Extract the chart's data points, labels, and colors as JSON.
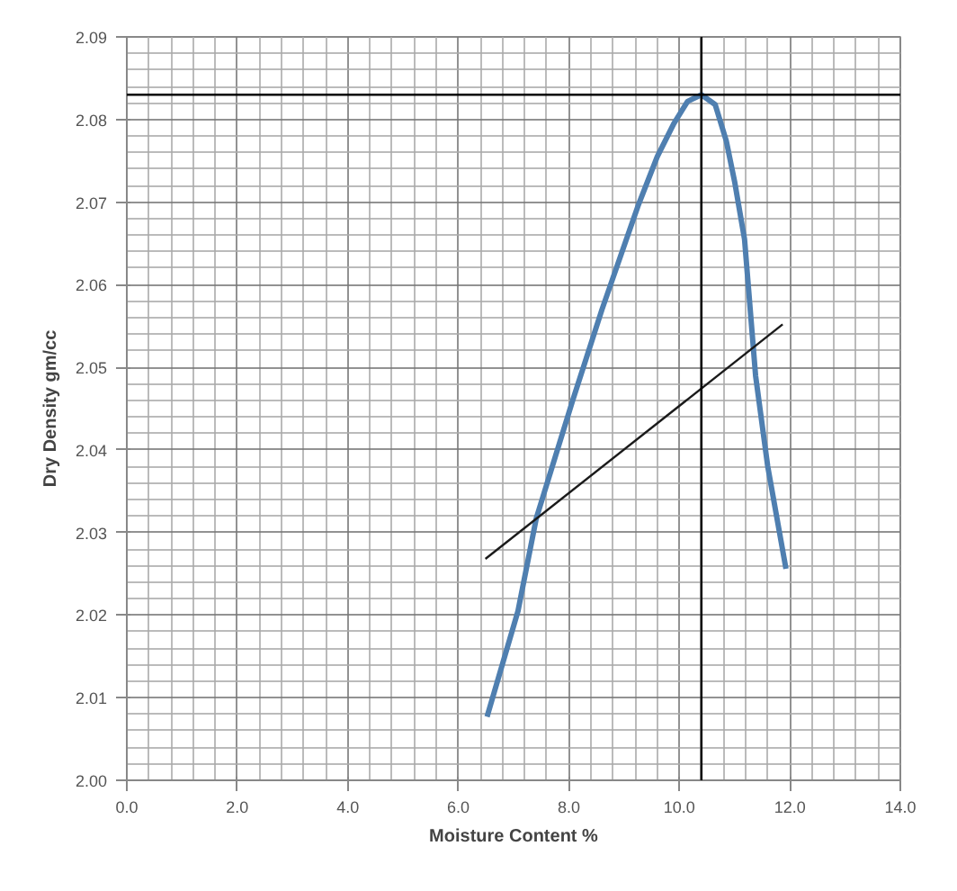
{
  "chart_data": {
    "type": "line",
    "xlabel": "Moisture Content %",
    "ylabel": "Dry Density gm/cc",
    "xlim": [
      0,
      14
    ],
    "ylim": [
      2.0,
      2.09
    ],
    "xticks": [
      {
        "value": 0,
        "label": "0.0"
      },
      {
        "value": 2,
        "label": "2.0"
      },
      {
        "value": 4,
        "label": "4.0"
      },
      {
        "value": 6,
        "label": "6.0"
      },
      {
        "value": 8,
        "label": "8.0"
      },
      {
        "value": 10,
        "label": "10.0"
      },
      {
        "value": 12,
        "label": "12.0"
      },
      {
        "value": 14,
        "label": "14.0"
      }
    ],
    "yticks": [
      {
        "value": 2.0,
        "label": "2.00"
      },
      {
        "value": 2.01,
        "label": "2.01"
      },
      {
        "value": 2.02,
        "label": "2.02"
      },
      {
        "value": 2.03,
        "label": "2.03"
      },
      {
        "value": 2.04,
        "label": "2.04"
      },
      {
        "value": 2.05,
        "label": "2.05"
      },
      {
        "value": 2.06,
        "label": "2.06"
      },
      {
        "value": 2.07,
        "label": "2.07"
      },
      {
        "value": 2.08,
        "label": "2.08"
      },
      {
        "value": 2.09,
        "label": "2.09"
      }
    ],
    "grid": true,
    "series": [
      {
        "color": "#4f7fb0",
        "x": [
          6.52,
          7.08,
          7.41,
          8.07,
          8.6,
          9.25,
          9.6,
          9.9,
          10.15,
          10.4,
          10.65,
          10.85,
          11.0,
          11.18,
          11.38,
          11.6,
          11.93
        ],
        "values": [
          2.0077,
          2.0205,
          2.0317,
          2.046,
          2.057,
          2.0695,
          2.0755,
          2.0795,
          2.0822,
          2.083,
          2.0818,
          2.0774,
          2.0725,
          2.0655,
          2.049,
          2.038,
          2.0256
        ]
      },
      {
        "color": "#1a1a1a",
        "x": [
          6.49,
          11.87
        ],
        "values": [
          2.0268,
          2.0552
        ]
      }
    ],
    "ref_lines": [
      {
        "axis": "x",
        "value": 10.4,
        "color": "#000000"
      },
      {
        "axis": "y",
        "value": 2.083,
        "color": "#000000"
      }
    ]
  }
}
